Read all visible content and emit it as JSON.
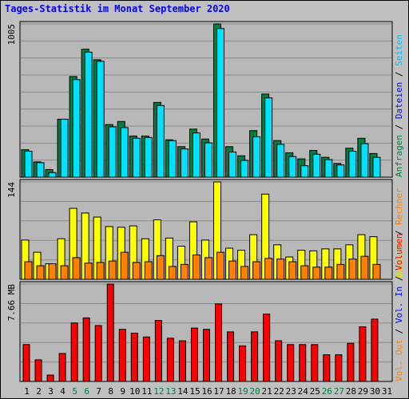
{
  "title": "Tages-Statistik im Monat September 2020",
  "colors": {
    "background": "#c0c0c0",
    "panel": "#b8b8b8",
    "grid": "#8a8a8a",
    "title": "#0000ff",
    "hits": "#008040",
    "files": "#00e0ff",
    "sites": "#ffff00",
    "visits": "#ff8000",
    "kbytes": "#ff0000",
    "weekend_label": "#008040",
    "weekday_label": "#000000"
  },
  "right_legend": {
    "panel1": [
      {
        "text": "Anfragen",
        "color": "#008040"
      },
      {
        "text": "Dateien",
        "color": "#0000ff"
      },
      {
        "text": "Seiten",
        "color": "#00c0ff"
      }
    ],
    "panel2": [
      {
        "text": "Besuche",
        "color": "#e0e000"
      },
      {
        "text": "Rechner",
        "color": "#ff8000"
      }
    ],
    "panel3": [
      {
        "text": "Vol. Out",
        "color": "#ff8000"
      },
      {
        "text": "Vol. In",
        "color": "#0000ff"
      },
      {
        "text": "Volumen",
        "color": "#ff0000"
      }
    ]
  },
  "chart_data": {
    "type": "bar",
    "title": "Tages-Statistik im Monat September 2020",
    "categories": [
      "1",
      "2",
      "3",
      "4",
      "5",
      "6",
      "7",
      "8",
      "9",
      "10",
      "11",
      "12",
      "13",
      "14",
      "15",
      "16",
      "17",
      "18",
      "19",
      "20",
      "21",
      "22",
      "23",
      "24",
      "25",
      "26",
      "27",
      "28",
      "29",
      "30",
      "31"
    ],
    "weekend_days": [
      5,
      6,
      12,
      13,
      19,
      20,
      26,
      27
    ],
    "panels": [
      {
        "name": "hits-files",
        "ymax_label": "1005",
        "ymax": 1005,
        "series": [
          {
            "name": "Anfragen",
            "color": "#008040",
            "values": [
              180,
              100,
              50,
              380,
              660,
              840,
              770,
              345,
              365,
              270,
              270,
              490,
              245,
              200,
              315,
              250,
              1005,
              200,
              140,
              305,
              545,
              240,
              160,
              120,
              175,
              130,
              90,
              190,
              255,
              155,
              0
            ]
          },
          {
            "name": "Dateien",
            "color": "#00e0ff",
            "values": [
              170,
              95,
              30,
              380,
              640,
              820,
              760,
              330,
              325,
              255,
              260,
              470,
              240,
              185,
              290,
              225,
              975,
              165,
              110,
              265,
              520,
              215,
              135,
              75,
              150,
              115,
              80,
              170,
              220,
              130,
              0
            ]
          }
        ]
      },
      {
        "name": "visits-sites",
        "ymax_label": "144",
        "ymax": 144,
        "series": [
          {
            "name": "Besuche",
            "color": "#ffff00",
            "values": [
              58,
              40,
              23,
              60,
              105,
              98,
              92,
              78,
              77,
              79,
              60,
              88,
              61,
              49,
              85,
              58,
              144,
              46,
              43,
              66,
              126,
              51,
              33,
              43,
              42,
              45,
              45,
              51,
              66,
              63,
              0
            ]
          },
          {
            "name": "Rechner",
            "color": "#ff8000",
            "values": [
              26,
              20,
              23,
              20,
              32,
              24,
              25,
              27,
              40,
              25,
              26,
              35,
              19,
              22,
              36,
              32,
              40,
              27,
              19,
              26,
              31,
              30,
              26,
              20,
              18,
              18,
              22,
              30,
              34,
              22,
              0
            ]
          }
        ]
      },
      {
        "name": "volume",
        "ymax_label": "7.66 MB",
        "ymax": 7.66,
        "series": [
          {
            "name": "Volumen",
            "color": "#ff0000",
            "values": [
              2.9,
              1.7,
              0.5,
              2.2,
              4.6,
              5.0,
              4.4,
              7.66,
              4.1,
              3.8,
              3.5,
              4.8,
              3.4,
              3.2,
              4.2,
              4.1,
              6.1,
              3.9,
              2.8,
              3.9,
              5.3,
              3.2,
              2.9,
              2.9,
              2.9,
              2.1,
              2.1,
              3.0,
              4.3,
              4.9,
              0
            ]
          }
        ]
      }
    ]
  }
}
